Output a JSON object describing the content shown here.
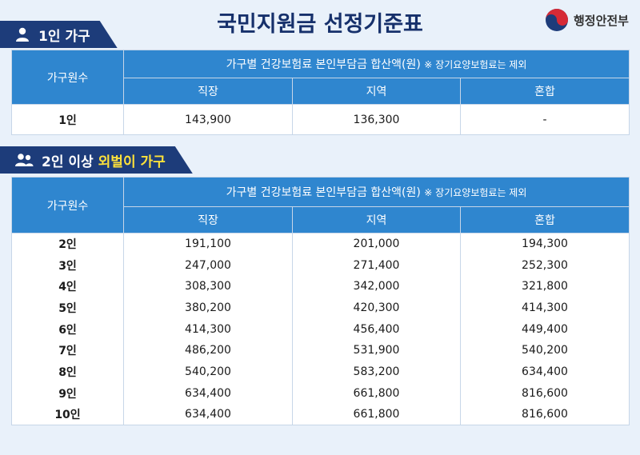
{
  "title": "국민지원금 선정기준표",
  "ministry": "행정안전부",
  "section1": {
    "label": "1인 가구",
    "icon": "single-person-icon",
    "header_row_label": "가구원수",
    "header_main": "가구별 건강보험료 본인부담금 합산액(원)",
    "header_note": "※ 장기요양보험료는 제외",
    "columns": [
      "직장",
      "지역",
      "혼합"
    ],
    "rows": [
      {
        "label": "1인",
        "values": [
          "143,900",
          "136,300",
          "-"
        ]
      }
    ]
  },
  "section2": {
    "label": "2인 이상",
    "highlight": "외벌이 가구",
    "icon": "two-people-icon",
    "header_row_label": "가구원수",
    "header_main": "가구별 건강보험료 본인부담금 합산액(원)",
    "header_note": "※ 장기요양보험료는 제외",
    "columns": [
      "직장",
      "지역",
      "혼합"
    ],
    "rows": [
      {
        "label": "2인",
        "values": [
          "191,100",
          "201,000",
          "194,300"
        ]
      },
      {
        "label": "3인",
        "values": [
          "247,000",
          "271,400",
          "252,300"
        ]
      },
      {
        "label": "4인",
        "values": [
          "308,300",
          "342,000",
          "321,800"
        ]
      },
      {
        "label": "5인",
        "values": [
          "380,200",
          "420,300",
          "414,300"
        ]
      },
      {
        "label": "6인",
        "values": [
          "414,300",
          "456,400",
          "449,400"
        ]
      },
      {
        "label": "7인",
        "values": [
          "486,200",
          "531,900",
          "540,200"
        ]
      },
      {
        "label": "8인",
        "values": [
          "540,200",
          "583,200",
          "634,400"
        ]
      },
      {
        "label": "9인",
        "values": [
          "634,400",
          "661,800",
          "816,600"
        ]
      },
      {
        "label": "10인",
        "values": [
          "634,400",
          "661,800",
          "816,600"
        ]
      }
    ]
  },
  "colors": {
    "navy": "#1d3c7a",
    "header_blue": "#2f86cf",
    "highlight_yellow": "#ffe23a",
    "background": "#e9f1fa"
  }
}
